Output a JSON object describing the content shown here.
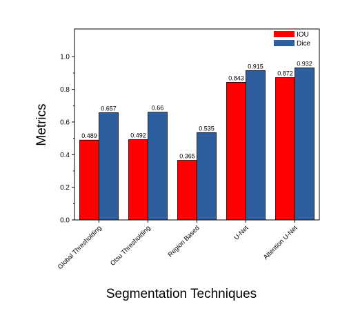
{
  "chart_data": {
    "type": "bar",
    "title": "",
    "xlabel": "Segmentation Techniques",
    "ylabel": "Metrics",
    "categories": [
      "Global Thresholding",
      "Otsu Thresholding",
      "Region Based",
      "U-Net",
      "Attention U-Net"
    ],
    "series": [
      {
        "name": "IOU",
        "values": [
          0.489,
          0.492,
          0.365,
          0.843,
          0.872
        ],
        "labels": [
          "0.489",
          "0.492",
          "0.365",
          "0.843",
          "0.872"
        ],
        "color": "#ff0000"
      },
      {
        "name": "Dice",
        "values": [
          0.657,
          0.66,
          0.535,
          0.915,
          0.932
        ],
        "labels": [
          "0.657",
          "0.66",
          "0.535",
          "0.915",
          "0.932"
        ],
        "color": "#2f5e9e"
      }
    ],
    "ylim": [
      0,
      1.17
    ],
    "yticks": [
      0.0,
      0.2,
      0.4,
      0.6,
      0.8,
      1.0
    ],
    "ytick_labels": [
      "0.0",
      "0.2",
      "0.4",
      "0.6",
      "0.8",
      "1.0"
    ],
    "grid": false,
    "legend_position": "top-right"
  }
}
